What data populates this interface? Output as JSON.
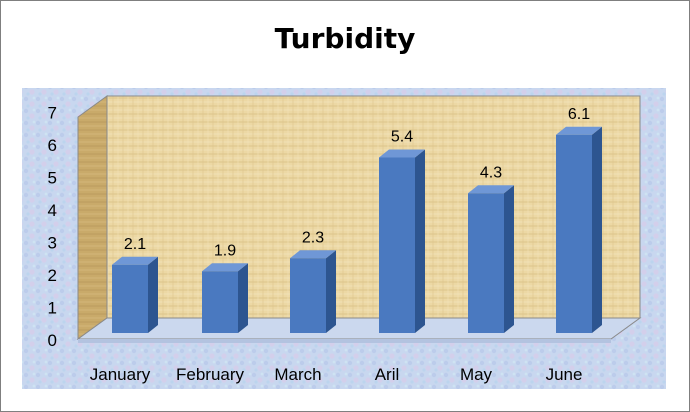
{
  "chart_data": {
    "type": "bar",
    "title": "Turbidity",
    "categories": [
      "January",
      "February",
      "March",
      "Aril",
      "May",
      "June"
    ],
    "values": [
      2.1,
      1.9,
      2.3,
      5.4,
      4.3,
      6.1
    ],
    "data_labels": [
      "2.1",
      "1.9",
      "2.3",
      "5.4",
      "4.3",
      "6.1"
    ],
    "yticks": [
      "0",
      "1",
      "2",
      "3",
      "4",
      "5",
      "6",
      "7"
    ],
    "ylim": [
      0,
      7
    ],
    "xlabel": "",
    "ylabel": "",
    "grid": false,
    "legend": "none",
    "three_d": true,
    "colors": {
      "bar_front": "#4a79c0",
      "bar_side": "#2d5590",
      "bar_top": "#6f97d6",
      "wall": "#ecd8a4",
      "side_wall": "#c9aa6a",
      "floor": "#cdd9ef",
      "plot_background": "#c9d8ef"
    }
  }
}
